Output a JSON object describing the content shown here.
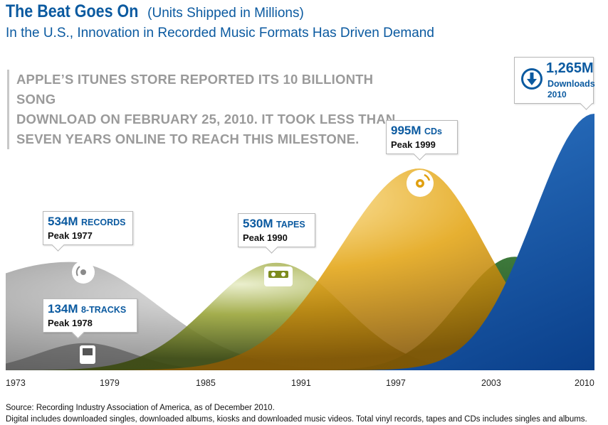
{
  "header": {
    "title": "The Beat Goes On",
    "title_paren": "(Units Shipped in Millions)",
    "subtitle": "In the U.S., Innovation in Recorded Music Formats Has Driven Demand"
  },
  "note": {
    "line1": "APPLE’S ITUNES STORE REPORTED ITS 10 BILLIONTH SONG",
    "line2": "DOWNLOAD ON FEBRUARY 25, 2010. IT TOOK LESS THAN",
    "line3": "SEVEN YEARS ONLINE TO REACH THIS MILESTONE."
  },
  "callouts": {
    "records": {
      "value": "534M",
      "unit": "RECORDS",
      "peak": "Peak 1977"
    },
    "eight_tracks": {
      "value": "134M",
      "unit": "8-TRACKS",
      "peak": "Peak 1978"
    },
    "tapes": {
      "value": "530M",
      "unit": "TAPES",
      "peak": "Peak 1990"
    },
    "cds": {
      "value": "995M",
      "unit": "CDs",
      "peak": "Peak 1999"
    },
    "downloads": {
      "value": "1,265M",
      "label": "Downloads",
      "year": "2010"
    }
  },
  "chart_data": {
    "type": "area",
    "title": "The Beat Goes On",
    "subtitle": "In the U.S., Innovation in Recorded Music Formats Has Driven Demand",
    "ylabel": "(Units Shipped in Millions)",
    "x_ticks": [
      "1973",
      "1979",
      "1985",
      "1991",
      "1997",
      "2003",
      "2010"
    ],
    "xlim": [
      1973,
      2010
    ],
    "ylim": [
      0,
      1265
    ],
    "grid": false,
    "series": [
      {
        "name": "RECORDS",
        "color": "#8a8a8a",
        "peak_year": 1977,
        "peak_value": 534,
        "sigma_left": 8,
        "sigma_right": 5.5,
        "floor": 300
      },
      {
        "name": "8-TRACKS",
        "color": "#3f3f3f",
        "peak_year": 1978,
        "peak_value": 134,
        "sigma_left": 3,
        "sigma_right": 3
      },
      {
        "name": "TAPES",
        "color": "#7d8c1e",
        "peak_year": 1990,
        "peak_value": 530,
        "sigma_left": 4.2,
        "sigma_right": 4.2
      },
      {
        "name": "CDs",
        "color": "#e0a010",
        "peak_year": 1999,
        "peak_value": 995,
        "sigma_left": 5,
        "sigma_right": 4.2
      },
      {
        "name": "Downloads",
        "color": "#0c5fb0",
        "peak_year": 2010,
        "peak_value": 1265,
        "sigma_left": 3.8,
        "sigma_right": 3.8
      },
      {
        "name": "Digital (green)",
        "color": "#1f5a1f",
        "peak_year": 2005,
        "peak_value": 560,
        "sigma_left": 3.5,
        "sigma_right": 3.5
      }
    ]
  },
  "axis": {
    "t1973": "1973",
    "t1979": "1979",
    "t1985": "1985",
    "t1991": "1991",
    "t1997": "1997",
    "t2003": "2003",
    "t2010": "2010"
  },
  "source": {
    "line1": "Source: Recording Industry Association of America, as of December 2010.",
    "line2": "Digital includes downloaded singles, downloaded albums, kiosks and downloaded music videos. Total vinyl records, tapes and CDs includes singles and albums."
  }
}
